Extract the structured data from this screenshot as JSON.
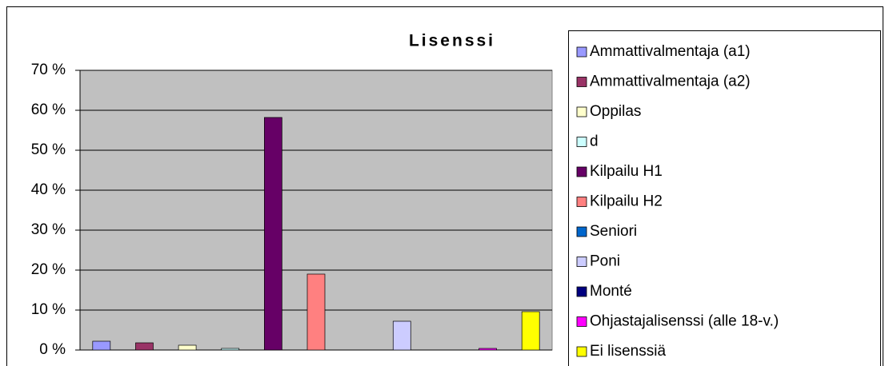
{
  "chart_data": {
    "type": "bar",
    "title": "Lisenssi",
    "series": [
      {
        "name": "Ammattivalmentaja (a1)",
        "color": "#9999ff",
        "values": [
          2.2
        ]
      },
      {
        "name": "Ammattivalmentaja (a2)",
        "color": "#993366",
        "values": [
          1.8
        ]
      },
      {
        "name": "Oppilas",
        "color": "#ffffcc",
        "values": [
          1.2
        ]
      },
      {
        "name": "d",
        "color": "#ccffff",
        "values": [
          0.4
        ]
      },
      {
        "name": "Kilpailu H1",
        "color": "#660066",
        "values": [
          58.2
        ]
      },
      {
        "name": "Kilpailu H2",
        "color": "#ff8080",
        "values": [
          19
        ]
      },
      {
        "name": "Seniori",
        "color": "#0066cc",
        "values": [
          0
        ]
      },
      {
        "name": "Poni",
        "color": "#ccccff",
        "values": [
          7.2
        ]
      },
      {
        "name": "Monté",
        "color": "#000080",
        "values": [
          0
        ]
      },
      {
        "name": "Ohjastajalisenssi (alle 18-v.)",
        "color": "#ff00ff",
        "values": [
          0.4
        ]
      },
      {
        "name": "Ei lisenssiä",
        "color": "#ffff00",
        "values": [
          9.6
        ]
      }
    ],
    "ylim": [
      0,
      70
    ],
    "yticks": [
      {
        "value": 0,
        "label": "0 %"
      },
      {
        "value": 10,
        "label": "10 %"
      },
      {
        "value": 20,
        "label": "20 %"
      },
      {
        "value": 30,
        "label": "30 %"
      },
      {
        "value": 40,
        "label": "40 %"
      },
      {
        "value": 50,
        "label": "50 %"
      },
      {
        "value": 60,
        "label": "60 %"
      },
      {
        "value": 70,
        "label": "70 %"
      }
    ],
    "grid": true,
    "legend": "right"
  }
}
